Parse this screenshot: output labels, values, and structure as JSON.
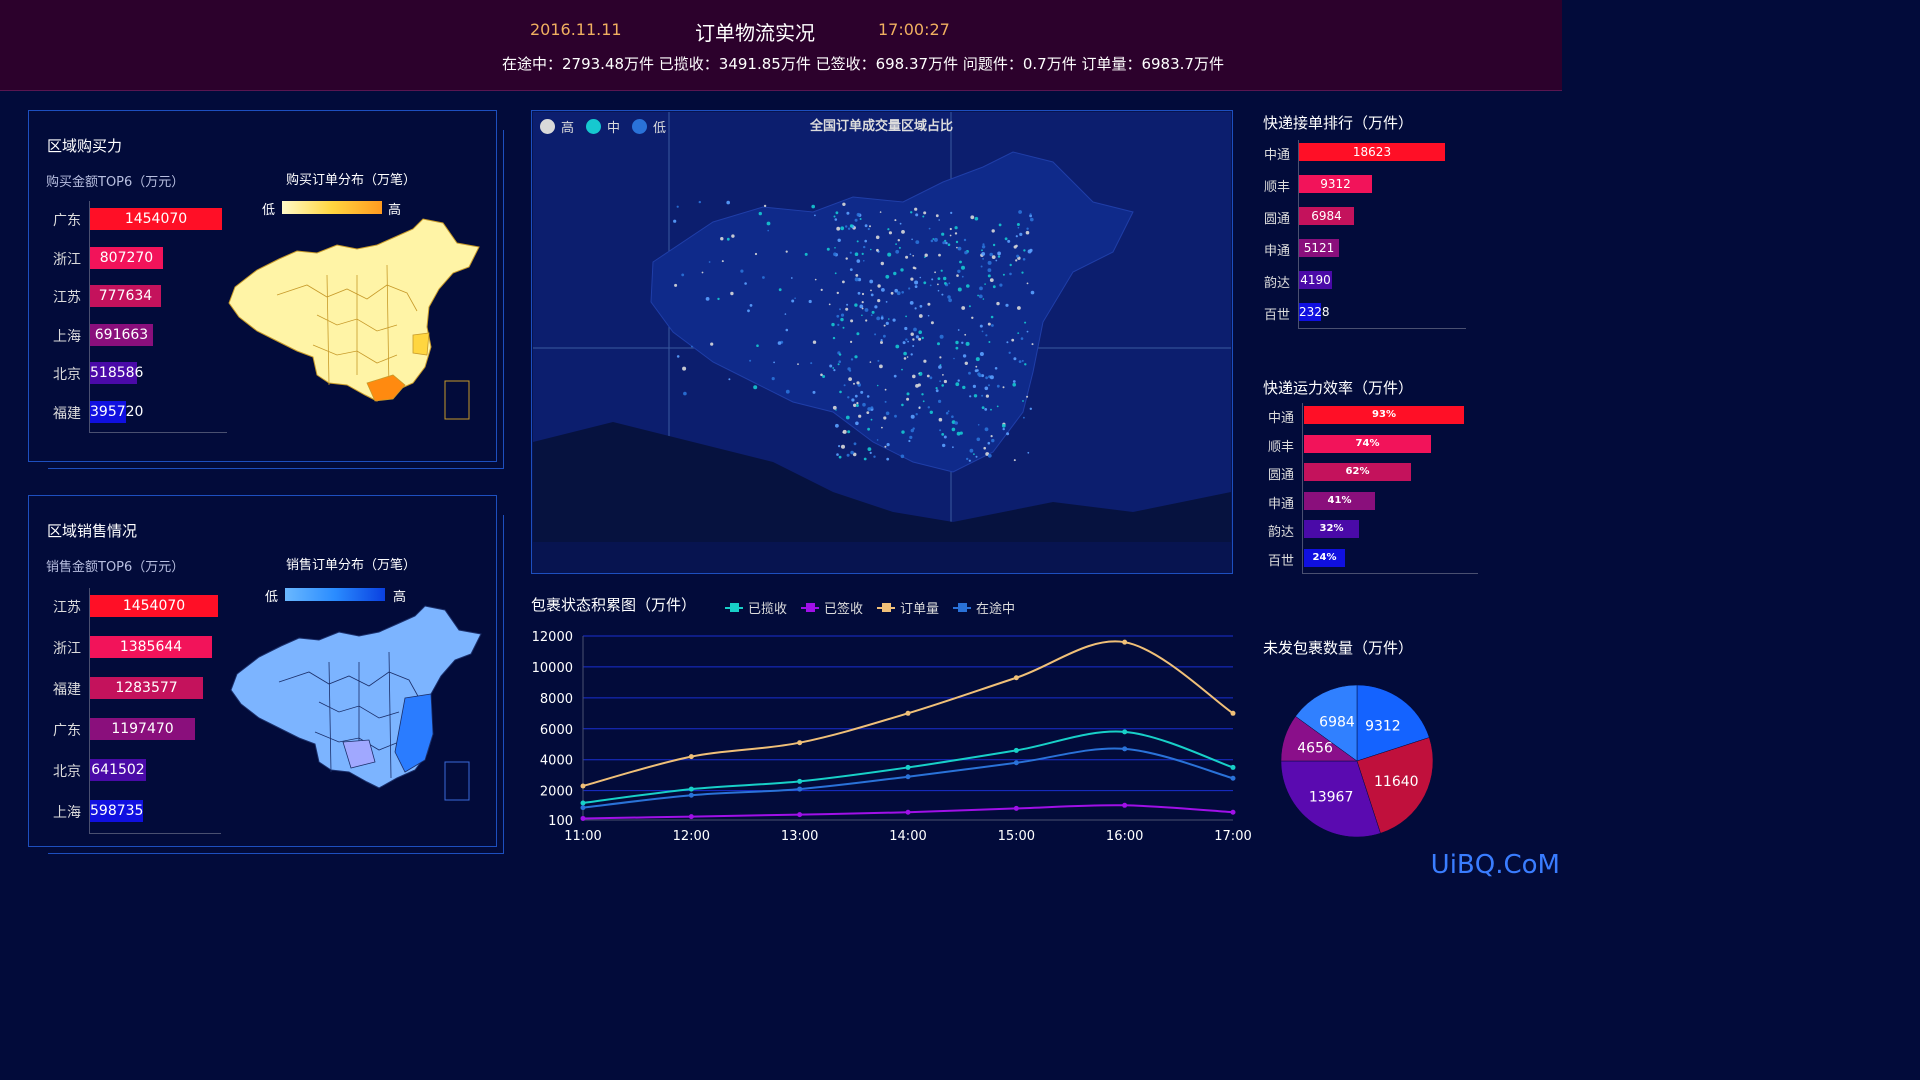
{
  "header": {
    "date": "2016.11.11",
    "title": "订单物流实况",
    "time": "17:00:27",
    "stats": "在途中：2793.48万件  已揽收：3491.85万件  已签收：698.37万件  问题件：0.7万件  订单量：6983.7万件"
  },
  "purchase": {
    "title": "区域购买力",
    "subtitle": "购买金额TOP6（万元）",
    "map_title": "购买订单分布（万笔）",
    "legend_low": "低",
    "legend_high": "高",
    "bars": [
      {
        "label": "广东",
        "value": 1454070,
        "color": "#ff0f26"
      },
      {
        "label": "浙江",
        "value": 807270,
        "color": "#f2135a"
      },
      {
        "label": "江苏",
        "value": 777634,
        "color": "#c4125c"
      },
      {
        "label": "上海",
        "value": 691663,
        "color": "#8a0f7c"
      },
      {
        "label": "北京",
        "value": 518586,
        "color": "#4a0aa8"
      },
      {
        "label": "福建",
        "value": 395720,
        "color": "#1010e0"
      }
    ]
  },
  "sales": {
    "title": "区域销售情况",
    "subtitle": "销售金额TOP6（万元）",
    "map_title": "销售订单分布（万笔）",
    "legend_low": "低",
    "legend_high": "高",
    "bars": [
      {
        "label": "江苏",
        "value": 1454070,
        "color": "#ff0f26"
      },
      {
        "label": "浙江",
        "value": 1385644,
        "color": "#f2135a"
      },
      {
        "label": "福建",
        "value": 1283577,
        "color": "#c4125c"
      },
      {
        "label": "广东",
        "value": 1197470,
        "color": "#8a0f7c"
      },
      {
        "label": "北京",
        "value": 641502,
        "color": "#4a0aa8"
      },
      {
        "label": "上海",
        "value": 598735,
        "color": "#1010e0"
      }
    ]
  },
  "center_map": {
    "title": "全国订单成交量区域占比",
    "legend": [
      {
        "label": "高",
        "color": "#d9d9d9"
      },
      {
        "label": "中",
        "color": "#16c8d0"
      },
      {
        "label": "低",
        "color": "#2a72d8"
      }
    ]
  },
  "rank": {
    "title": "快递接单排行（万件）",
    "items": [
      {
        "label": "中通",
        "value": 18623,
        "color": "#ff0f26"
      },
      {
        "label": "顺丰",
        "value": 9312,
        "color": "#f2135a"
      },
      {
        "label": "圆通",
        "value": 6984,
        "color": "#c4125c"
      },
      {
        "label": "申通",
        "value": 5121,
        "color": "#8a0f7c"
      },
      {
        "label": "韵达",
        "value": 4190,
        "color": "#4a0aa8"
      },
      {
        "label": "百世",
        "value": 2328,
        "color": "#1010e0"
      }
    ]
  },
  "efficiency": {
    "title": "快递运力效率（万件）",
    "items": [
      {
        "label": "中通",
        "value": 93,
        "text": "93%",
        "color": "#ff0f26"
      },
      {
        "label": "顺丰",
        "value": 74,
        "text": "74%",
        "color": "#f2135a"
      },
      {
        "label": "圆通",
        "value": 62,
        "text": "62%",
        "color": "#c4125c"
      },
      {
        "label": "申通",
        "value": 41,
        "text": "41%",
        "color": "#8a0f7c"
      },
      {
        "label": "韵达",
        "value": 32,
        "text": "32%",
        "color": "#4a0aa8"
      },
      {
        "label": "百世",
        "value": 24,
        "text": "24%",
        "color": "#1010e0"
      }
    ]
  },
  "unshipped": {
    "title": "未发包裹数量（万件）"
  },
  "chart_data": [
    {
      "type": "line",
      "title": "包裹状态积累图（万件）",
      "x": [
        "11:00",
        "12:00",
        "13:00",
        "14:00",
        "15:00",
        "16:00",
        "17:00"
      ],
      "ylim": [
        100,
        12000
      ],
      "yticks": [
        100,
        2000,
        4000,
        6000,
        8000,
        10000,
        12000
      ],
      "grid": true,
      "legend_position": "top",
      "series": [
        {
          "name": "已揽收",
          "color": "#18d0c8",
          "values": [
            1200,
            2100,
            2600,
            3500,
            4600,
            5800,
            3500
          ]
        },
        {
          "name": "已签收",
          "color": "#a010e8",
          "values": [
            200,
            320,
            450,
            600,
            850,
            1050,
            600
          ]
        },
        {
          "name": "订单量",
          "color": "#f0c078",
          "values": [
            2300,
            4200,
            5100,
            7000,
            9300,
            11600,
            7000
          ]
        },
        {
          "name": "在途中",
          "color": "#2a72d8",
          "values": [
            900,
            1700,
            2100,
            2900,
            3800,
            4700,
            2800
          ]
        }
      ]
    },
    {
      "type": "pie",
      "title": "未发包裹数量（万件）",
      "slices": [
        {
          "label": "9312",
          "value": 9312,
          "color": "#1463ff"
        },
        {
          "label": "11640",
          "value": 11640,
          "color": "#c0103c"
        },
        {
          "label": "13967",
          "value": 13967,
          "color": "#5a0ab0"
        },
        {
          "label": "4656",
          "value": 4656,
          "color": "#8a0f8a"
        },
        {
          "label": "6984",
          "value": 6984,
          "color": "#3080ff"
        }
      ]
    }
  ],
  "watermark": "UiBQ.CoM"
}
